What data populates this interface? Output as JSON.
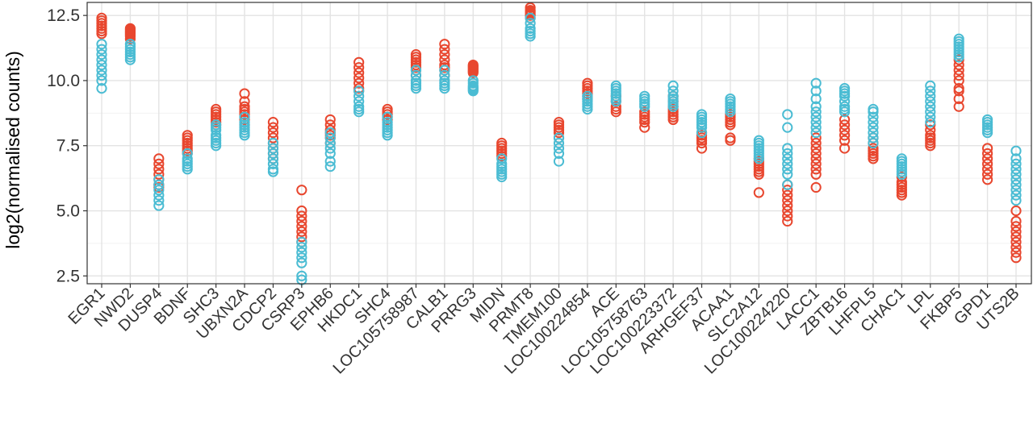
{
  "chart_data": {
    "type": "scatter",
    "xlabel": "",
    "ylabel": "log2(normalised counts)",
    "ylim": [
      2.2,
      13.0
    ],
    "yticks": [
      "2.5",
      "5.0",
      "7.5",
      "10.0",
      "12.5"
    ],
    "ytick_values": [
      2.5,
      5.0,
      7.5,
      10.0,
      12.5
    ],
    "grid": true,
    "marker": "open-circle",
    "colors": {
      "red_group": "#E8472F",
      "blue_group": "#4BBCD3"
    },
    "categories": [
      "EGR1",
      "NWD2",
      "DUSP4",
      "BDNF",
      "SHC3",
      "UBXN2A",
      "CDCP2",
      "CSRP3",
      "EPHB6",
      "HKDC1",
      "SHC4",
      "LOC105758987",
      "CALB1",
      "PRRG3",
      "MIDN",
      "PRMT8",
      "TMEM100",
      "LOC100224854",
      "ACE",
      "LOC105758763",
      "LOC100223372",
      "ARHGEF37",
      "ACAA1",
      "SLC2A12",
      "LOC100224220",
      "LACC1",
      "ZBTB16",
      "LHFPL5",
      "CHAC1",
      "LPL",
      "FKBP5",
      "GPD1",
      "UTS2B"
    ],
    "series": [
      {
        "color": "#E8472F",
        "values": [
          [
            12.4,
            12.3,
            12.2,
            12.1,
            12.0,
            11.9,
            11.8
          ],
          [
            12.0,
            11.95,
            11.9,
            11.85,
            11.8,
            11.75,
            11.7,
            11.6
          ],
          [
            7.0,
            6.8,
            6.6,
            6.4,
            6.2,
            6.0,
            5.9
          ],
          [
            7.9,
            7.8,
            7.7,
            7.6,
            7.5,
            7.4,
            7.3,
            7.2
          ],
          [
            8.9,
            8.8,
            8.7,
            8.6,
            8.5,
            8.4,
            8.3
          ],
          [
            9.5,
            9.2,
            9.0,
            8.9,
            8.8,
            8.7,
            8.6,
            8.5,
            8.3
          ],
          [
            8.4,
            8.2,
            8.0,
            7.8,
            7.6,
            7.4,
            7.2,
            7.0
          ],
          [
            5.8,
            5.0,
            4.8,
            4.6,
            4.4,
            4.2,
            4.0,
            3.8
          ],
          [
            8.5,
            8.3,
            8.1,
            8.0,
            7.9,
            7.8,
            7.6
          ],
          [
            10.7,
            10.5,
            10.3,
            10.1,
            9.9,
            9.7,
            9.6
          ],
          [
            8.9,
            8.8,
            8.7,
            8.6,
            8.5
          ],
          [
            11.0,
            10.9,
            10.8,
            10.7,
            10.6,
            10.5,
            10.4,
            10.2
          ],
          [
            11.4,
            11.2,
            11.0,
            10.8,
            10.6,
            10.5,
            10.4,
            10.2
          ],
          [
            10.6,
            10.55,
            10.5,
            10.45,
            10.4,
            10.35,
            10.3
          ],
          [
            7.6,
            7.5,
            7.4,
            7.3,
            7.2,
            7.1
          ],
          [
            12.8,
            12.7,
            12.65,
            12.6,
            12.55,
            12.5,
            12.4
          ],
          [
            8.4,
            8.3,
            8.2,
            8.1,
            8.0,
            7.8
          ],
          [
            9.9,
            9.8,
            9.7,
            9.6,
            9.5,
            9.4,
            9.3
          ],
          [
            9.4,
            9.2,
            9.0,
            8.9,
            8.8
          ],
          [
            8.8,
            8.7,
            8.6,
            8.5,
            8.4,
            8.2
          ],
          [
            9.4,
            9.2,
            9.0,
            8.9,
            8.8,
            8.7,
            8.6,
            8.5
          ],
          [
            8.0,
            7.9,
            7.8,
            7.7,
            7.6,
            7.4
          ],
          [
            8.7,
            8.6,
            8.5,
            8.4,
            8.3,
            7.8,
            7.7
          ],
          [
            7.0,
            6.9,
            6.8,
            6.7,
            6.6,
            6.5,
            6.4,
            5.7
          ],
          [
            6.0,
            5.8,
            5.6,
            5.4,
            5.2,
            5.0,
            4.8,
            4.6
          ],
          [
            7.8,
            7.6,
            7.4,
            7.2,
            7.0,
            6.8,
            6.6,
            6.4,
            5.9
          ],
          [
            8.5,
            8.3,
            8.1,
            7.9,
            7.7,
            7.4
          ],
          [
            7.8,
            7.6,
            7.4,
            7.3,
            7.2,
            7.1,
            7.0
          ],
          [
            6.3,
            6.1,
            6.0,
            5.9,
            5.8,
            5.7,
            5.6
          ],
          [
            8.3,
            8.1,
            7.9,
            7.8,
            7.7,
            7.6,
            7.5
          ],
          [
            10.8,
            10.6,
            10.4,
            10.2,
            10.0,
            9.7,
            9.6,
            9.3,
            9.0
          ],
          [
            7.4,
            7.2,
            7.0,
            6.8,
            6.6,
            6.4,
            6.2
          ],
          [
            5.0,
            4.6,
            4.4,
            4.2,
            4.0,
            3.8,
            3.6,
            3.4,
            3.2
          ]
        ]
      },
      {
        "color": "#4BBCD3",
        "values": [
          [
            11.4,
            11.2,
            11.0,
            10.8,
            10.6,
            10.4,
            10.2,
            10.0,
            9.7
          ],
          [
            11.4,
            11.3,
            11.2,
            11.1,
            11.0,
            10.9,
            10.8
          ],
          [
            6.2,
            6.0,
            5.8,
            5.6,
            5.4,
            5.2
          ],
          [
            7.2,
            7.0,
            6.9,
            6.8,
            6.7,
            6.6
          ],
          [
            8.3,
            8.2,
            8.1,
            7.9,
            7.8,
            7.7,
            7.6,
            7.5
          ],
          [
            8.6,
            8.4,
            8.3,
            8.2,
            8.1,
            8.0,
            7.9
          ],
          [
            7.6,
            7.4,
            7.2,
            7.0,
            6.8,
            6.6,
            6.5
          ],
          [
            3.8,
            3.6,
            3.4,
            3.2,
            3.0,
            2.5,
            2.35
          ],
          [
            8.0,
            7.8,
            7.6,
            7.4,
            7.2,
            6.9,
            6.7
          ],
          [
            9.6,
            9.4,
            9.2,
            9.0,
            8.9,
            8.8
          ],
          [
            8.6,
            8.4,
            8.3,
            8.2,
            8.1,
            8.0,
            7.9
          ],
          [
            10.4,
            10.2,
            10.0,
            9.9,
            9.8,
            9.7
          ],
          [
            10.4,
            10.2,
            10.0,
            9.9,
            9.8,
            9.7
          ],
          [
            10.0,
            9.9,
            9.8,
            9.75,
            9.7,
            9.65,
            9.6
          ],
          [
            7.0,
            6.8,
            6.7,
            6.6,
            6.5,
            6.4,
            6.3
          ],
          [
            12.4,
            12.2,
            12.0,
            11.9,
            11.8,
            11.7
          ],
          [
            7.8,
            7.6,
            7.4,
            7.2,
            6.9
          ],
          [
            9.4,
            9.3,
            9.2,
            9.1,
            9.0,
            8.9
          ],
          [
            9.8,
            9.7,
            9.6,
            9.5,
            9.4,
            9.3,
            9.2
          ],
          [
            9.4,
            9.3,
            9.2,
            9.1,
            9.0
          ],
          [
            9.8,
            9.6,
            9.4,
            9.3,
            9.2,
            9.1,
            9.0
          ],
          [
            8.7,
            8.6,
            8.5,
            8.4,
            8.3,
            8.2,
            8.0
          ],
          [
            9.3,
            9.2,
            9.1,
            9.0,
            8.9,
            8.8
          ],
          [
            7.7,
            7.6,
            7.5,
            7.4,
            7.3,
            7.2,
            7.1,
            7.0
          ],
          [
            8.7,
            8.2,
            7.4,
            7.2,
            7.0,
            6.8,
            6.6,
            6.4,
            6.0
          ],
          [
            9.9,
            9.6,
            9.3,
            9.0,
            8.8,
            8.6,
            8.4,
            8.2,
            8.0
          ],
          [
            9.7,
            9.6,
            9.5,
            9.4,
            9.2,
            9.0,
            8.9,
            8.8
          ],
          [
            8.9,
            8.8,
            8.6,
            8.4,
            8.2,
            8.0,
            7.8,
            7.6
          ],
          [
            7.0,
            6.9,
            6.8,
            6.7,
            6.6,
            6.5,
            6.4
          ],
          [
            9.8,
            9.6,
            9.4,
            9.2,
            9.0,
            8.8,
            8.6,
            8.4
          ],
          [
            11.6,
            11.5,
            11.4,
            11.3,
            11.2,
            11.1,
            11.0,
            10.9
          ],
          [
            8.5,
            8.4,
            8.3,
            8.2,
            8.1,
            8.0
          ],
          [
            7.3,
            7.0,
            6.8,
            6.6,
            6.4,
            6.2,
            6.0,
            5.8,
            5.6,
            5.4
          ]
        ]
      }
    ]
  }
}
